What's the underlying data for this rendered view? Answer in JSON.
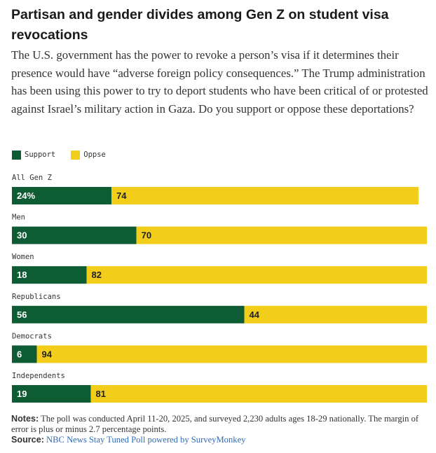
{
  "title": "Partisan and gender divides among Gen Z on student visa revocations",
  "subtitle": "The U.S. government has the power to revoke a person’s visa if it determines their presence would have “adverse foreign policy consequences.” The Trump administration has been using this power to try to deport students who have been critical of or protested against Israel’s military action in Gaza. Do you support or oppose these deportations?",
  "notes": {
    "notes_label": "Notes:",
    "notes_text": "The poll was conducted April 11-20, 2025, and surveyed 2,230 adults ages 18-29 nationally. The margin of error is plus or minus 2.7 percentage points.",
    "source_label": "Source:",
    "source_text": "NBC News Stay Tuned Poll powered by SurveyMonkey"
  },
  "colors": {
    "support": "#0e5c33",
    "oppose": "#f2cd1a",
    "support_text": "#ffffff",
    "oppose_text": "#222222"
  },
  "chart_data": {
    "type": "bar",
    "orientation": "horizontal",
    "stacked": true,
    "title": "Partisan and gender divides among Gen Z on student visa revocations",
    "legend": [
      "Support",
      "Oppse"
    ],
    "categories": [
      "All Gen Z",
      "Men",
      "Women",
      "Republicans",
      "Democrats",
      "Independents"
    ],
    "series": [
      {
        "name": "Support",
        "values": [
          24,
          30,
          18,
          56,
          6,
          19
        ],
        "labels": [
          "24%",
          "30",
          "18",
          "56",
          "6",
          "19"
        ]
      },
      {
        "name": "Oppse",
        "values": [
          74,
          70,
          82,
          44,
          94,
          81
        ],
        "labels": [
          "74",
          "70",
          "82",
          "44",
          "94",
          "81"
        ]
      }
    ],
    "xlim": [
      0,
      100
    ],
    "grid": false,
    "legend_position": "top-left"
  }
}
